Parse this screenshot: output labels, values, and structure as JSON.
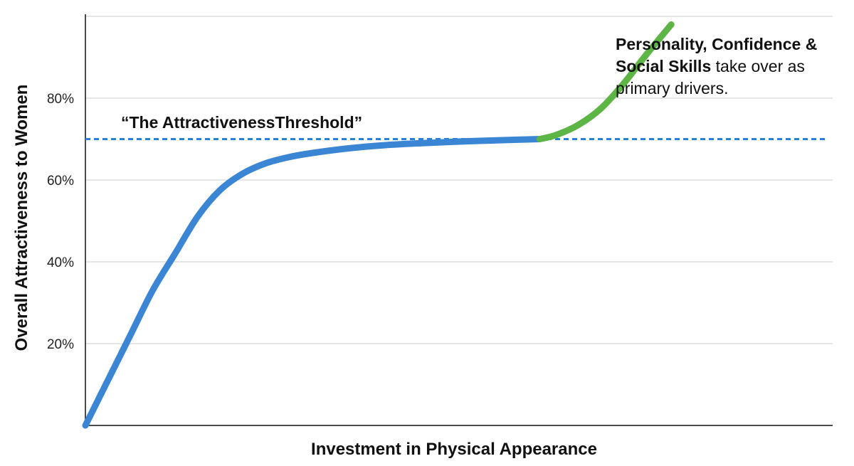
{
  "chart_data": {
    "type": "line",
    "title": "",
    "xlabel": "Investment in Physical Appearance",
    "ylabel": "Overall Attractiveness to Women",
    "xlim": [
      0,
      100
    ],
    "ylim": [
      0,
      100
    ],
    "yticks": [
      {
        "value": 20,
        "label": "20%"
      },
      {
        "value": 40,
        "label": "40%"
      },
      {
        "value": 60,
        "label": "60%"
      },
      {
        "value": 80,
        "label": "80%"
      }
    ],
    "grid": true,
    "threshold": {
      "value": 70,
      "label": "“The AttractivenessThreshold”",
      "style": "dashed",
      "color": "#2b7fd4"
    },
    "series": [
      {
        "color": "#3a86d4",
        "x": [
          0,
          3,
          6,
          9,
          12,
          15,
          18,
          21,
          24,
          27,
          30,
          35,
          40,
          45,
          50,
          55,
          60.8
        ],
        "y": [
          0,
          11,
          22,
          33,
          42,
          51,
          57.5,
          61.5,
          64,
          65.5,
          66.5,
          67.7,
          68.5,
          69,
          69.4,
          69.7,
          70
        ]
      },
      {
        "color": "#5cb545",
        "x": [
          60.8,
          63,
          66,
          69,
          72,
          75,
          78.4
        ],
        "y": [
          70,
          71,
          73.5,
          77.5,
          83.5,
          90.5,
          98
        ]
      }
    ],
    "annotations": [
      {
        "bold_line1": "Personality, Confidence &",
        "bold_line2": "Social Skills",
        "rest_line2": " take over as",
        "line3": "primary drivers."
      }
    ]
  }
}
